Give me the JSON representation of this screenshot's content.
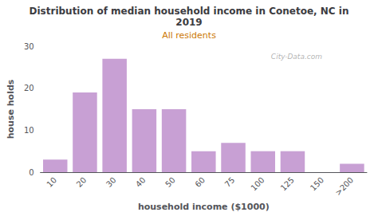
{
  "chart_data": {
    "type": "bar",
    "title": "Distribution of median household income in Conetoe, NC in\n2019",
    "subtitle": "All residents",
    "xlabel": "household income ($1000)",
    "ylabel": "house holds",
    "categories": [
      "10",
      "20",
      "30",
      "40",
      "50",
      "60",
      "75",
      "100",
      "125",
      "150",
      ">200"
    ],
    "values": [
      3,
      19,
      27,
      15,
      15,
      5,
      7,
      5,
      5,
      0,
      2
    ],
    "color": "#c8a0d4",
    "ylim": [
      0,
      30
    ],
    "yticks": [
      0,
      10,
      20,
      30
    ],
    "grid": false,
    "annotations": [
      "City-Data.com"
    ]
  }
}
